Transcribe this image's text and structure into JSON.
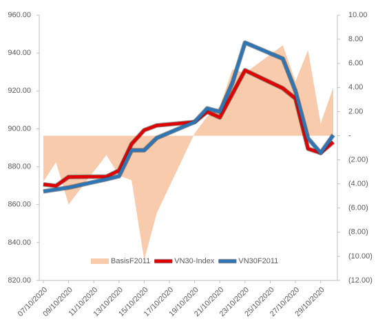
{
  "chart_data": {
    "type": "line",
    "x": [
      "07/10/2020",
      "08/10/2020",
      "09/10/2020",
      "12/10/2020",
      "13/10/2020",
      "14/10/2020",
      "15/10/2020",
      "16/10/2020",
      "19/10/2020",
      "20/10/2020",
      "21/10/2020",
      "22/10/2020",
      "23/10/2020",
      "26/10/2020",
      "27/10/2020",
      "28/10/2020",
      "29/10/2020",
      "30/10/2020"
    ],
    "xlim": [
      "07/10/2020",
      "30/10/2020"
    ],
    "xticks": [
      "07/10/2020",
      "09/10/2020",
      "11/10/2020",
      "13/10/2020",
      "15/10/2020",
      "17/10/2020",
      "19/10/2020",
      "21/10/2020",
      "23/10/2020",
      "25/10/2020",
      "27/10/2020",
      "29/10/2020"
    ],
    "ylim": [
      820,
      960
    ],
    "yticks": [
      {
        "value": 820,
        "label": "820.00"
      },
      {
        "value": 840,
        "label": "840.00"
      },
      {
        "value": 860,
        "label": "860.00"
      },
      {
        "value": 880,
        "label": "880.00"
      },
      {
        "value": 900,
        "label": "900.00"
      },
      {
        "value": 920,
        "label": "920.00"
      },
      {
        "value": 940,
        "label": "940.00"
      },
      {
        "value": 960,
        "label": "960.00"
      }
    ],
    "y2lim": [
      -12,
      10
    ],
    "y2ticks": [
      {
        "value": -12,
        "label": "(12.00)"
      },
      {
        "value": -10,
        "label": "(10.00)"
      },
      {
        "value": -8,
        "label": "(8.00)"
      },
      {
        "value": -6,
        "label": "(6.00)"
      },
      {
        "value": -4,
        "label": "(4.00)"
      },
      {
        "value": -2,
        "label": "(2.00)"
      },
      {
        "value": 0,
        "label": "-"
      },
      {
        "value": 2,
        "label": "2.00"
      },
      {
        "value": 4,
        "label": "4.00"
      },
      {
        "value": 6,
        "label": "6.00"
      },
      {
        "value": 8,
        "label": "8.00"
      },
      {
        "value": 10,
        "label": "10.00"
      }
    ],
    "legend": "bottom",
    "series": [
      {
        "name": "BasisF2011",
        "type": "area",
        "axis": "y2",
        "color": "#f8cbad",
        "values": [
          -3.8,
          -2.2,
          -5.7,
          -1.6,
          -3.3,
          -3.7,
          -10.3,
          -6.4,
          0.2,
          1.6,
          2.4,
          5.5,
          5.2,
          7.5,
          4.5,
          7.1,
          1.0,
          4.0
        ]
      },
      {
        "name": "VN30-Index",
        "type": "line",
        "color": "#e00000",
        "values": [
          870.7,
          869.9,
          874.6,
          874.8,
          878,
          892,
          899.3,
          901.8,
          903.6,
          909,
          906,
          918.5,
          930.9,
          921.4,
          916,
          889.5,
          887.3,
          893
        ]
      },
      {
        "name": "VN30F2011",
        "type": "line",
        "color": "#2e75b6",
        "values": [
          867,
          868,
          869,
          873.4,
          875,
          888.7,
          888.7,
          895.2,
          903.6,
          910.8,
          909,
          924.3,
          945.5,
          937,
          920,
          895,
          887.3,
          896.7
        ]
      }
    ]
  }
}
